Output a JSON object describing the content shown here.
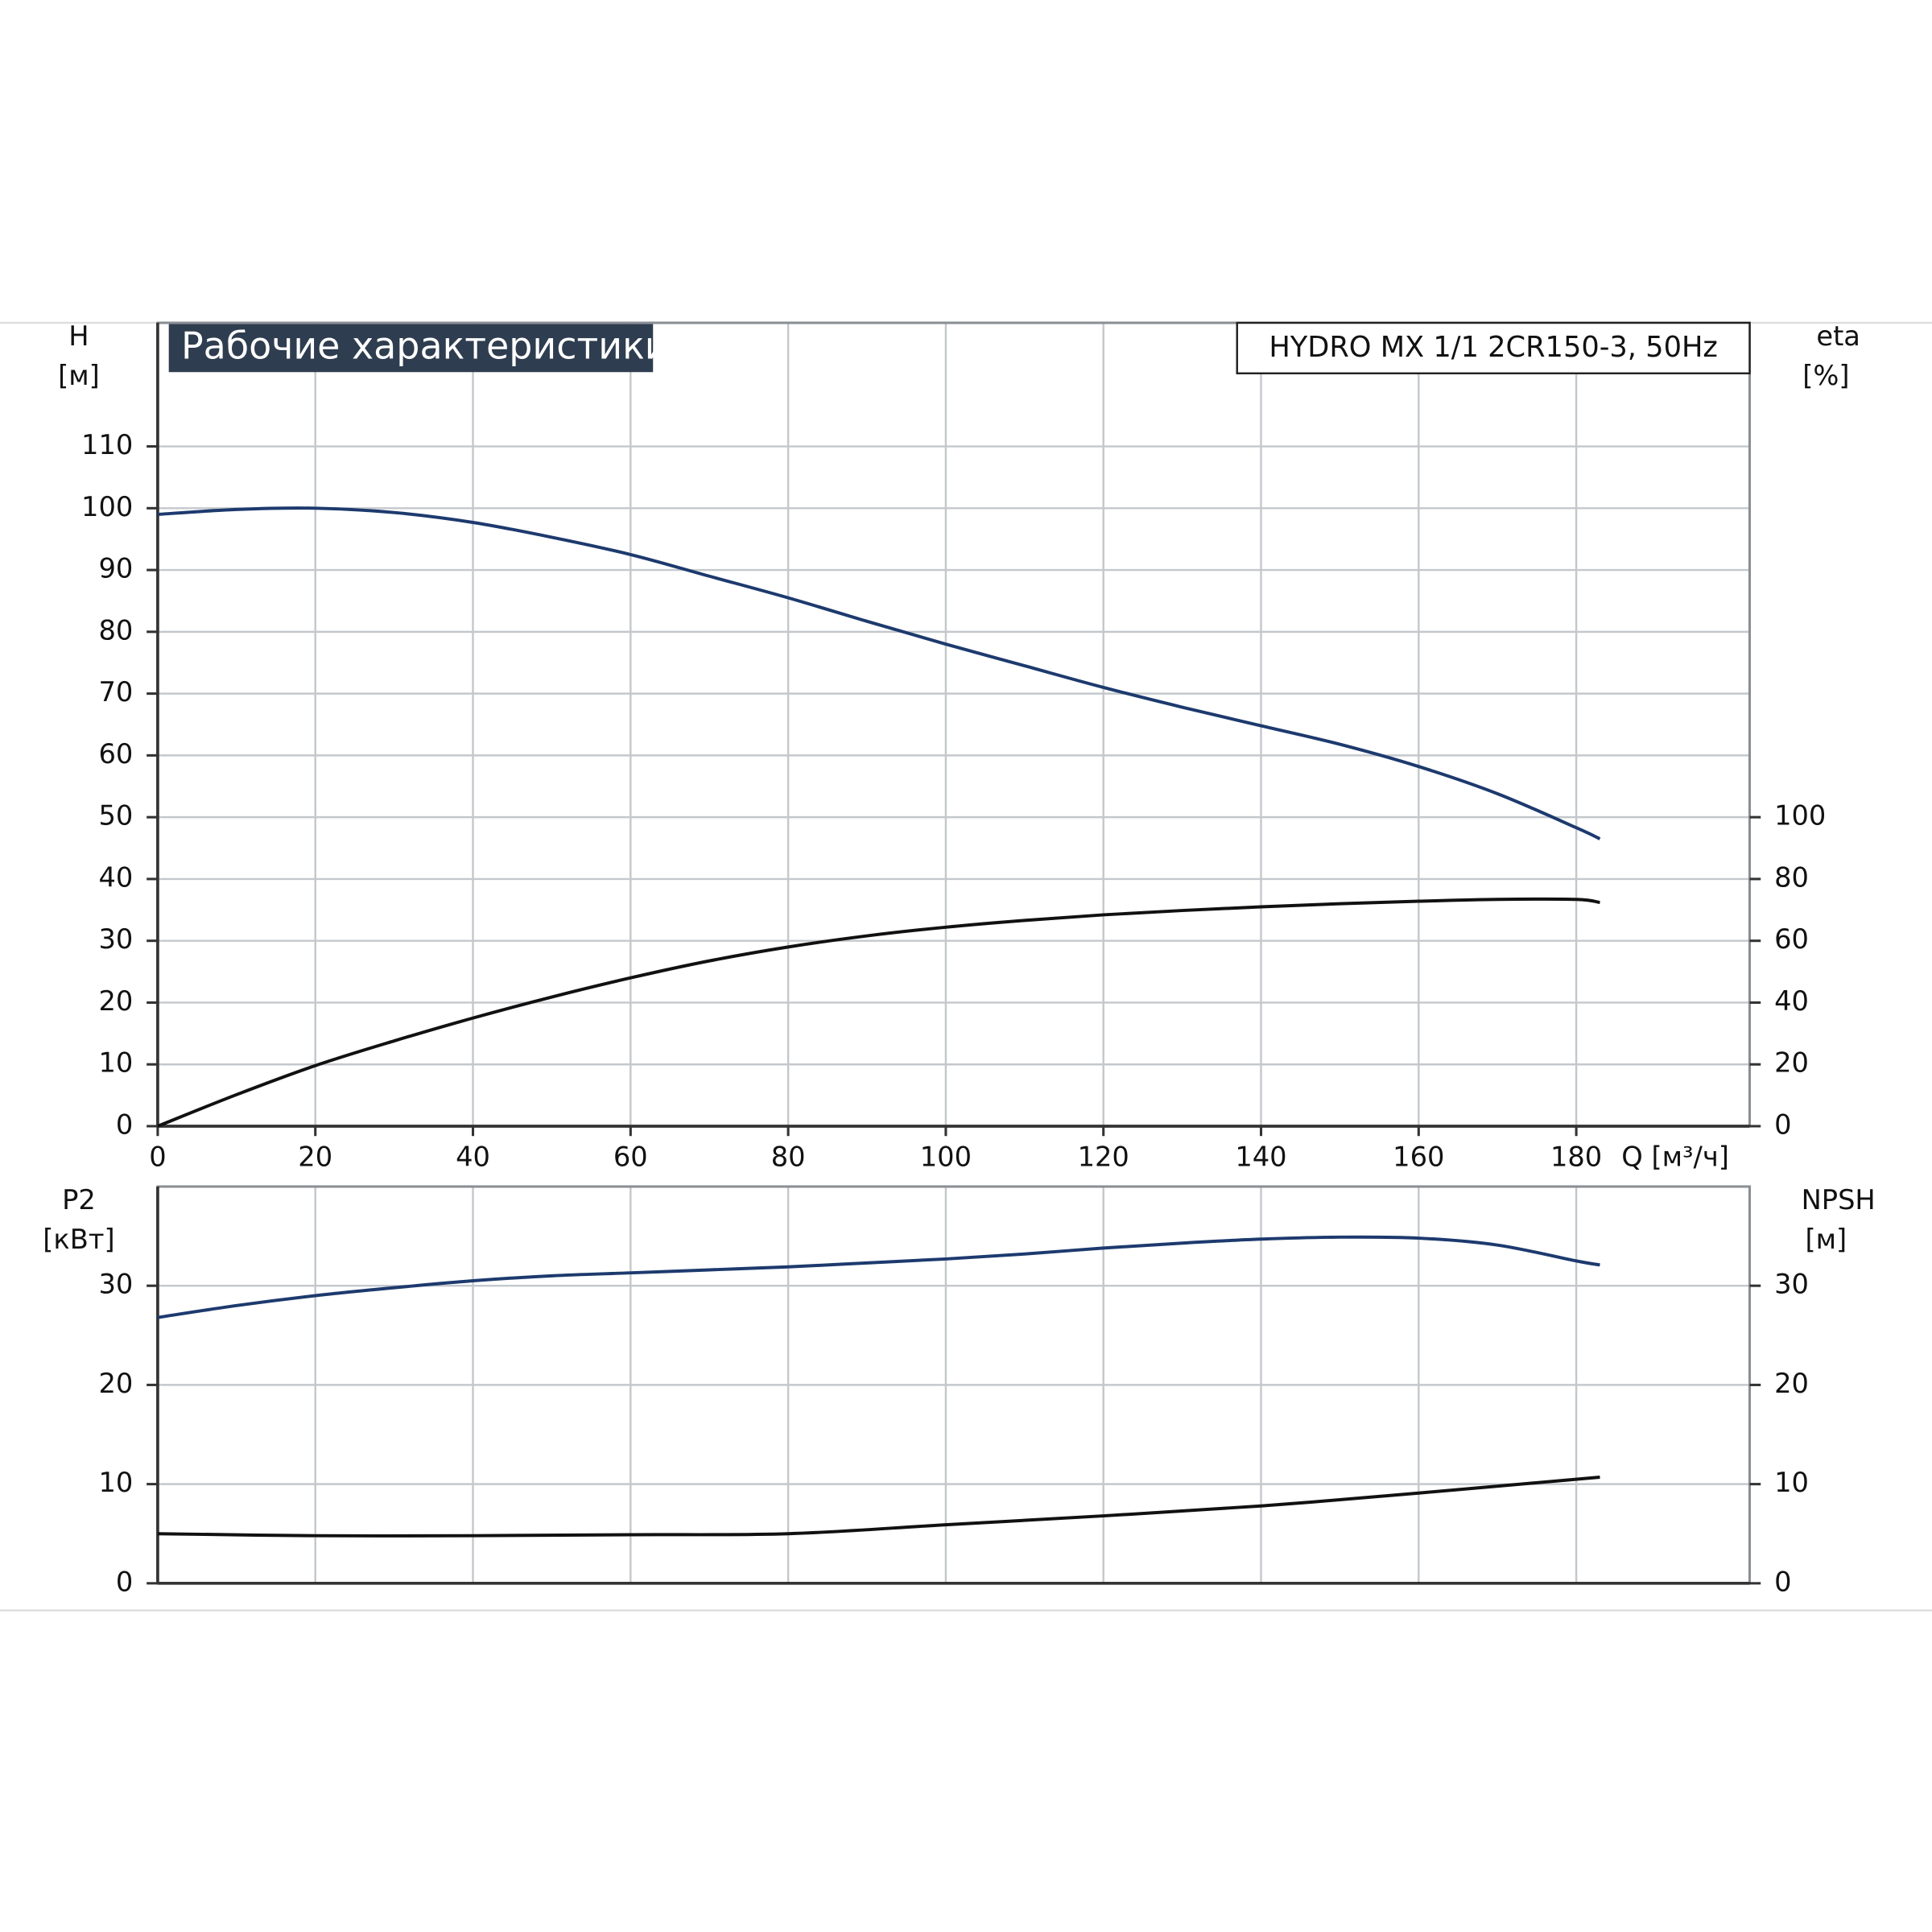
{
  "chart_data": [
    {
      "type": "line",
      "title": "Рабочие характеристики",
      "subtitle": "HYDRO MX 1/1 2CR150-3, 50Hz",
      "xlabel": "Q [м³/ч]",
      "ylabel": "H",
      "ylabel_unit": "[м]",
      "y2label": "eta",
      "y2label_unit": "[%]",
      "xlim": [
        0,
        202
      ],
      "xticks": [
        0,
        20,
        40,
        60,
        80,
        100,
        120,
        140,
        160,
        180
      ],
      "ylim": [
        0,
        130
      ],
      "yticks": [
        0,
        10,
        20,
        30,
        40,
        50,
        60,
        70,
        80,
        90,
        100,
        110
      ],
      "y2lim": [
        0,
        260
      ],
      "y2ticks": [
        0,
        20,
        40,
        60,
        80,
        100
      ],
      "grid": true,
      "series": [
        {
          "name": "H",
          "color": "#1d3a6e",
          "axis": "y",
          "x": [
            0,
            10,
            20,
            30,
            40,
            50,
            60,
            70,
            80,
            90,
            100,
            110,
            120,
            130,
            140,
            150,
            160,
            170,
            180,
            183
          ],
          "values": [
            99,
            99.8,
            100,
            99.3,
            97.7,
            95.3,
            92.5,
            89,
            85.5,
            81.7,
            78,
            74.5,
            71,
            67.8,
            64.8,
            61.8,
            58.2,
            53.8,
            48.3,
            46.5
          ]
        },
        {
          "name": "eta",
          "color": "#111111",
          "axis": "y2",
          "x": [
            0,
            10,
            20,
            30,
            40,
            50,
            60,
            70,
            80,
            90,
            100,
            110,
            120,
            130,
            140,
            150,
            160,
            170,
            180,
            183
          ],
          "values": [
            0,
            10.2,
            19.6,
            27.6,
            35,
            41.8,
            48,
            53.5,
            58,
            61.6,
            64.4,
            66.6,
            68.4,
            69.8,
            71,
            72,
            72.8,
            73.4,
            73.4,
            72.4
          ]
        }
      ]
    },
    {
      "type": "line",
      "ylabel": "P2",
      "ylabel_unit": "[кВт]",
      "y2label": "NPSH",
      "y2label_unit": "[м]",
      "xlim": [
        0,
        202
      ],
      "ylim": [
        0,
        40
      ],
      "yticks": [
        0,
        10,
        20,
        30
      ],
      "y2lim": [
        0,
        40
      ],
      "y2ticks": [
        0,
        10,
        20,
        30
      ],
      "grid": true,
      "series": [
        {
          "name": "P2",
          "color": "#1d3a6e",
          "axis": "y",
          "x": [
            0,
            10,
            20,
            30,
            40,
            50,
            60,
            70,
            80,
            90,
            100,
            110,
            120,
            130,
            140,
            150,
            160,
            170,
            180,
            183
          ],
          "values": [
            26.8,
            28,
            29,
            29.8,
            30.5,
            31,
            31.3,
            31.6,
            31.9,
            32.3,
            32.7,
            33.2,
            33.8,
            34.3,
            34.7,
            34.9,
            34.8,
            34.1,
            32.5,
            32.1
          ]
        },
        {
          "name": "NPSH",
          "color": "#111111",
          "axis": "y2",
          "x": [
            0,
            20,
            40,
            60,
            80,
            100,
            120,
            140,
            160,
            183
          ],
          "values": [
            5,
            4.8,
            4.8,
            4.9,
            5,
            5.9,
            6.8,
            7.8,
            9.1,
            10.7
          ]
        }
      ]
    }
  ]
}
